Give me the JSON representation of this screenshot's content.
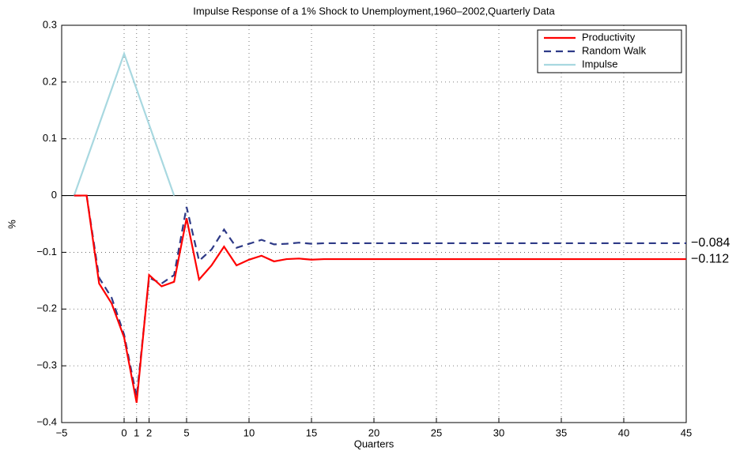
{
  "chart_data": {
    "type": "line",
    "title": "Impulse Response of a 1% Shock to Unemployment,1960–2002,Quarterly Data",
    "xlabel": "Quarters",
    "ylabel": "%",
    "x": [
      -4,
      -3,
      -2,
      -1,
      0,
      1,
      2,
      3,
      4,
      5,
      6,
      7,
      8,
      9,
      10,
      11,
      12,
      13,
      14,
      15,
      16,
      17,
      18,
      19,
      20,
      21,
      22,
      23,
      24,
      25,
      26,
      27,
      28,
      29,
      30,
      31,
      32,
      33,
      34,
      35,
      36,
      37,
      38,
      39,
      40,
      41,
      42,
      43,
      44,
      45
    ],
    "series": [
      {
        "name": "Productivity",
        "color": "#ff0000",
        "dash": false,
        "values": [
          0,
          0,
          -0.155,
          -0.19,
          -0.25,
          -0.365,
          -0.14,
          -0.16,
          -0.152,
          -0.04,
          -0.148,
          -0.123,
          -0.09,
          -0.123,
          -0.113,
          -0.106,
          -0.116,
          -0.112,
          -0.111,
          -0.113,
          -0.112,
          -0.112,
          -0.112,
          -0.112,
          -0.112,
          -0.112,
          -0.112,
          -0.112,
          -0.112,
          -0.112,
          -0.112,
          -0.112,
          -0.112,
          -0.112,
          -0.112,
          -0.112,
          -0.112,
          -0.112,
          -0.112,
          -0.112,
          -0.112,
          -0.112,
          -0.112,
          -0.112,
          -0.112,
          -0.112,
          -0.112,
          -0.112,
          -0.112,
          -0.112
        ]
      },
      {
        "name": "Random Walk",
        "color": "#2e3a87",
        "dash": true,
        "values": [
          0,
          0,
          -0.145,
          -0.18,
          -0.245,
          -0.355,
          -0.145,
          -0.155,
          -0.14,
          -0.02,
          -0.115,
          -0.095,
          -0.06,
          -0.092,
          -0.085,
          -0.078,
          -0.086,
          -0.085,
          -0.083,
          -0.085,
          -0.084,
          -0.084,
          -0.084,
          -0.084,
          -0.084,
          -0.084,
          -0.084,
          -0.084,
          -0.084,
          -0.084,
          -0.084,
          -0.084,
          -0.084,
          -0.084,
          -0.084,
          -0.084,
          -0.084,
          -0.084,
          -0.084,
          -0.084,
          -0.084,
          -0.084,
          -0.084,
          -0.084,
          -0.084,
          -0.084,
          -0.084,
          -0.084,
          -0.084,
          -0.084
        ]
      },
      {
        "name": "Impulse",
        "color": "#a8d8e0",
        "dash": false,
        "values": [
          0,
          0.0625,
          0.125,
          0.1875,
          0.25,
          0.1875,
          0.125,
          0.0625,
          0,
          null,
          null,
          null,
          null,
          null,
          null,
          null,
          null,
          null,
          null,
          null,
          null,
          null,
          null,
          null,
          null,
          null,
          null,
          null,
          null,
          null,
          null,
          null,
          null,
          null,
          null,
          null,
          null,
          null,
          null,
          null,
          null,
          null,
          null,
          null,
          null,
          null,
          null,
          null,
          null,
          null
        ]
      }
    ],
    "annotations": [
      "−0.112",
      "−0.084"
    ],
    "xlim": [
      -5,
      45
    ],
    "xticks": [
      {
        "value": -5,
        "label": "−5"
      },
      0,
      1,
      2,
      5,
      10,
      15,
      20,
      25,
      30,
      35,
      40,
      45
    ],
    "ylim": [
      -0.4,
      0.3
    ],
    "yticks": [
      {
        "value": -0.4,
        "label": "−0.4"
      },
      {
        "value": -0.3,
        "label": "−0.3"
      },
      {
        "value": -0.2,
        "label": "−0.2"
      },
      {
        "value": -0.1,
        "label": "−0.1"
      },
      0,
      0.1,
      0.2,
      0.3
    ],
    "grid": true,
    "legend": "upper right"
  }
}
